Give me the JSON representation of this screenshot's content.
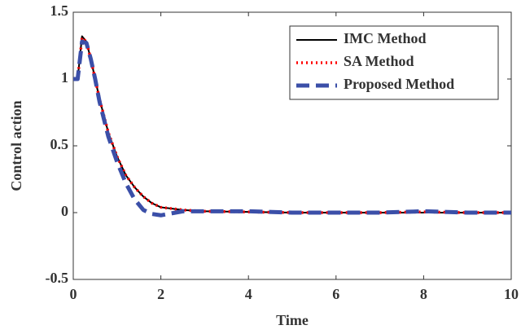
{
  "chart_data": {
    "type": "line",
    "x_label": "Time",
    "y_label": "Control action",
    "x": [
      0,
      0.1,
      0.2,
      0.3,
      0.4,
      0.5,
      0.6,
      0.8,
      1.0,
      1.2,
      1.4,
      1.6,
      1.8,
      2.0,
      2.5,
      3,
      4,
      5,
      6,
      7,
      8,
      9,
      10
    ],
    "series": [
      {
        "name": "IMC Method",
        "color": "#000000",
        "style": "solid",
        "values": [
          1,
          1,
          1.32,
          1.28,
          1.15,
          1.0,
          0.85,
          0.6,
          0.42,
          0.28,
          0.19,
          0.12,
          0.07,
          0.04,
          0.02,
          0.01,
          0.005,
          0,
          0,
          0,
          0,
          0,
          0
        ]
      },
      {
        "name": "SA Method",
        "color": "#ff0000",
        "style": "dotted",
        "values": [
          1,
          1,
          1.31,
          1.28,
          1.15,
          1.0,
          0.85,
          0.6,
          0.42,
          0.28,
          0.19,
          0.12,
          0.07,
          0.04,
          0.02,
          0.01,
          0.005,
          0,
          0,
          0,
          0.005,
          0,
          0
        ]
      },
      {
        "name": "Proposed Method",
        "color": "#3b4fa8",
        "style": "dashed",
        "values": [
          1,
          1,
          1.28,
          1.27,
          1.15,
          1.0,
          0.83,
          0.57,
          0.38,
          0.22,
          0.1,
          0.02,
          -0.01,
          -0.02,
          0.01,
          0.01,
          0.01,
          0,
          0,
          0,
          0.01,
          0,
          0
        ]
      }
    ],
    "xlim": [
      0,
      10
    ],
    "xticks": [
      0,
      2,
      4,
      6,
      8,
      10
    ],
    "ylim": [
      -0.5,
      1.5
    ],
    "yticks": [
      -0.5,
      0,
      0.5,
      1,
      1.5
    ],
    "grid": false,
    "legend": "upper right"
  }
}
